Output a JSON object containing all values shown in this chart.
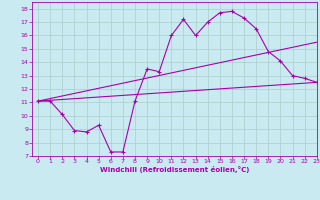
{
  "background_color": "#c8eaf0",
  "line_color": "#aa00aa",
  "grid_color": "#aacccc",
  "xlabel": "Windchill (Refroidissement éolien,°C)",
  "xlim": [
    -0.5,
    23
  ],
  "ylim": [
    7,
    18.5
  ],
  "xticks": [
    0,
    1,
    2,
    3,
    4,
    5,
    6,
    7,
    8,
    9,
    10,
    11,
    12,
    13,
    14,
    15,
    16,
    17,
    18,
    19,
    20,
    21,
    22,
    23
  ],
  "yticks": [
    7,
    8,
    9,
    10,
    11,
    12,
    13,
    14,
    15,
    16,
    17,
    18
  ],
  "curve1_x": [
    0,
    1,
    2,
    3,
    4,
    5,
    6,
    7,
    8,
    9,
    10,
    11,
    12,
    13,
    14,
    15,
    16,
    17,
    18,
    19,
    20,
    21,
    22,
    23
  ],
  "curve1_y": [
    11.1,
    11.1,
    10.1,
    8.9,
    8.8,
    9.3,
    7.3,
    7.3,
    11.1,
    13.5,
    13.3,
    16.0,
    17.2,
    16.0,
    17.0,
    17.7,
    17.8,
    17.3,
    16.5,
    14.8,
    14.1,
    13.0,
    12.8,
    12.5
  ],
  "curve2_x": [
    0,
    23
  ],
  "curve2_y": [
    11.1,
    15.5
  ],
  "curve3_x": [
    0,
    23
  ],
  "curve3_y": [
    11.1,
    12.5
  ]
}
